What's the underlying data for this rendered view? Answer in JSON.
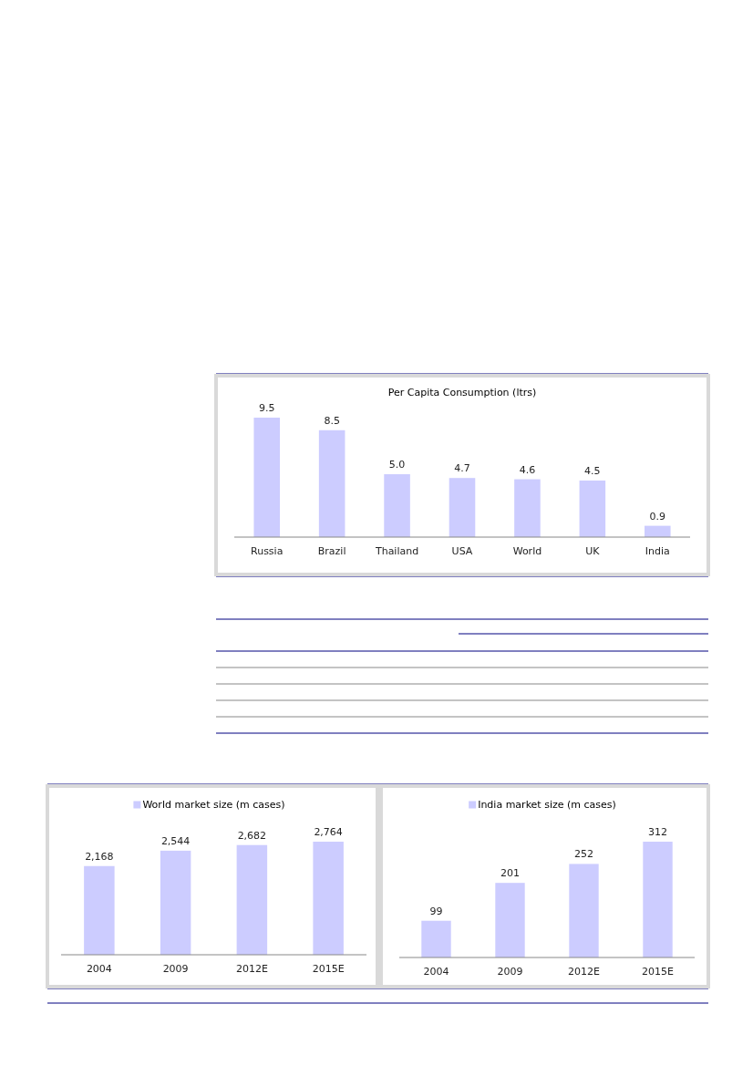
{
  "chart_data": [
    {
      "type": "bar",
      "title": "Per Capita Consumption (ltrs)",
      "categories": [
        "Russia",
        "Brazil",
        "Thailand",
        "USA",
        "World",
        "UK",
        "India"
      ],
      "values": [
        9.5,
        8.5,
        5.0,
        4.7,
        4.6,
        4.5,
        0.9
      ],
      "value_labels": [
        "9.5",
        "8.5",
        "5.0",
        "4.7",
        "4.6",
        "4.5",
        "0.9"
      ],
      "color": "#ccccff"
    },
    {
      "type": "bar",
      "categories": [
        "2004",
        "2009",
        "2012E",
        "2015E"
      ],
      "series": [
        {
          "name": "World market size (m cases)",
          "color": "#ccccff",
          "values": [
            2168,
            2544,
            2682,
            2764
          ],
          "value_labels": [
            "2,168",
            "2,544",
            "2,682",
            "2,764"
          ]
        }
      ],
      "legend": "top"
    },
    {
      "type": "bar",
      "categories": [
        "2004",
        "2009",
        "2012E",
        "2015E"
      ],
      "series": [
        {
          "name": "India market size (m cases)",
          "color": "#ccccff",
          "values": [
            99,
            201,
            252,
            312
          ]
        }
      ],
      "data_labels": true,
      "legend": "top"
    }
  ]
}
